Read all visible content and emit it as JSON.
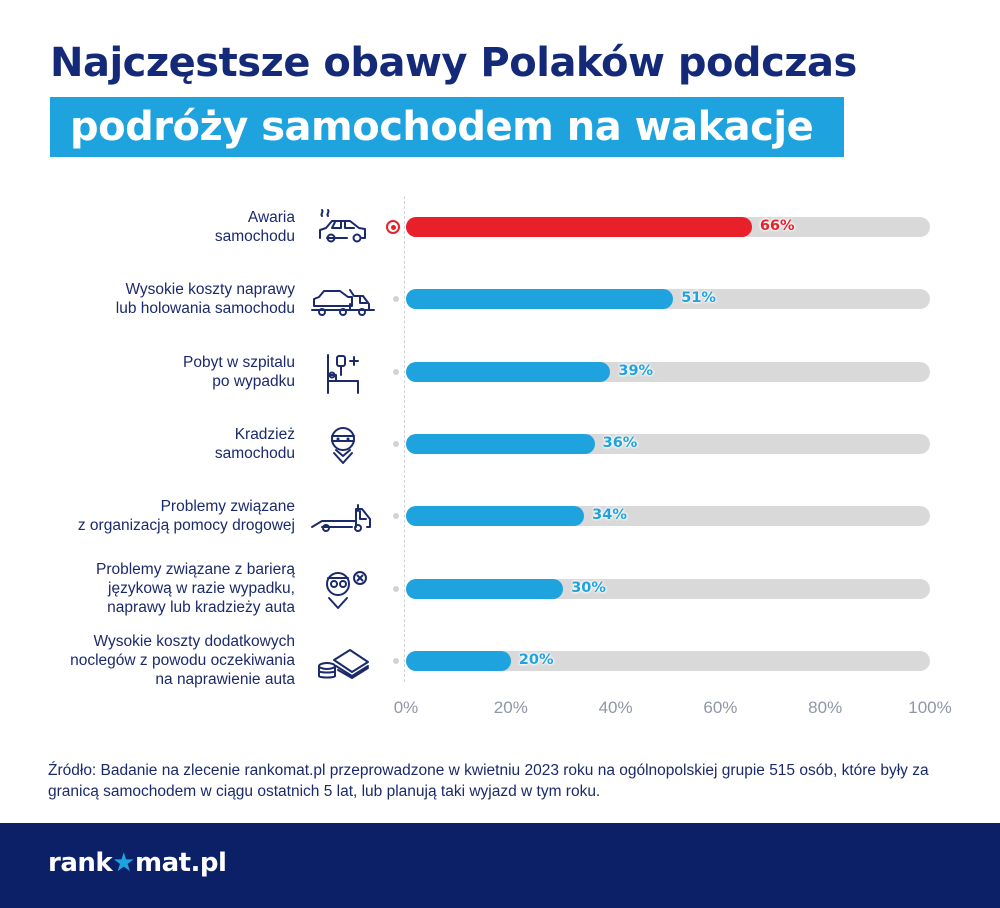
{
  "title": {
    "line1": "Najczęstsze obawy Polaków podczas",
    "line2": "podróży samochodem na wakacje"
  },
  "chart_data": {
    "type": "bar",
    "orientation": "horizontal",
    "categories": [
      [
        "Awaria",
        "samochodu"
      ],
      [
        "Wysokie koszty naprawy",
        "lub holowania samochodu"
      ],
      [
        "Pobyt w szpitalu",
        "po wypadku"
      ],
      [
        "Kradzież",
        "samochodu"
      ],
      [
        "Problemy związane",
        "z organizacją pomocy drogowej"
      ],
      [
        "Problemy związane z barierą",
        "językową w razie wypadku,",
        "naprawy lub kradzieży auta"
      ],
      [
        "Wysokie koszty dodatkowych",
        "noclegów z powodu oczekiwania",
        "na naprawienie auta"
      ]
    ],
    "values": [
      66,
      51,
      39,
      36,
      34,
      30,
      20
    ],
    "value_labels": [
      "66%",
      "51%",
      "39%",
      "36%",
      "34%",
      "30%",
      "20%"
    ],
    "icons": [
      "car-smoke-icon",
      "tow-truck-icon",
      "hospital-bed-icon",
      "thief-icon",
      "flatbed-truck-icon",
      "confused-person-icon",
      "money-coins-icon"
    ],
    "xlim": [
      0,
      100
    ],
    "x_ticks": [
      "0%",
      "20%",
      "40%",
      "60%",
      "80%",
      "100%"
    ],
    "highlight_index": 0,
    "colors": {
      "highlight": "#e8202a",
      "bar": "#1fa3de",
      "track": "#d9d9d9"
    }
  },
  "source": "Źródło: Badanie na zlecenie rankomat.pl przeprowadzone w kwietniu 2023 roku na ogólnopolskiej grupie 515 osób, które były za granicą samochodem w ciągu ostatnich 5 lat, lub planują taki wyjazd w tym roku.",
  "footer": {
    "logo_part1": "rank",
    "logo_star": "★",
    "logo_part2": "mat.pl"
  }
}
